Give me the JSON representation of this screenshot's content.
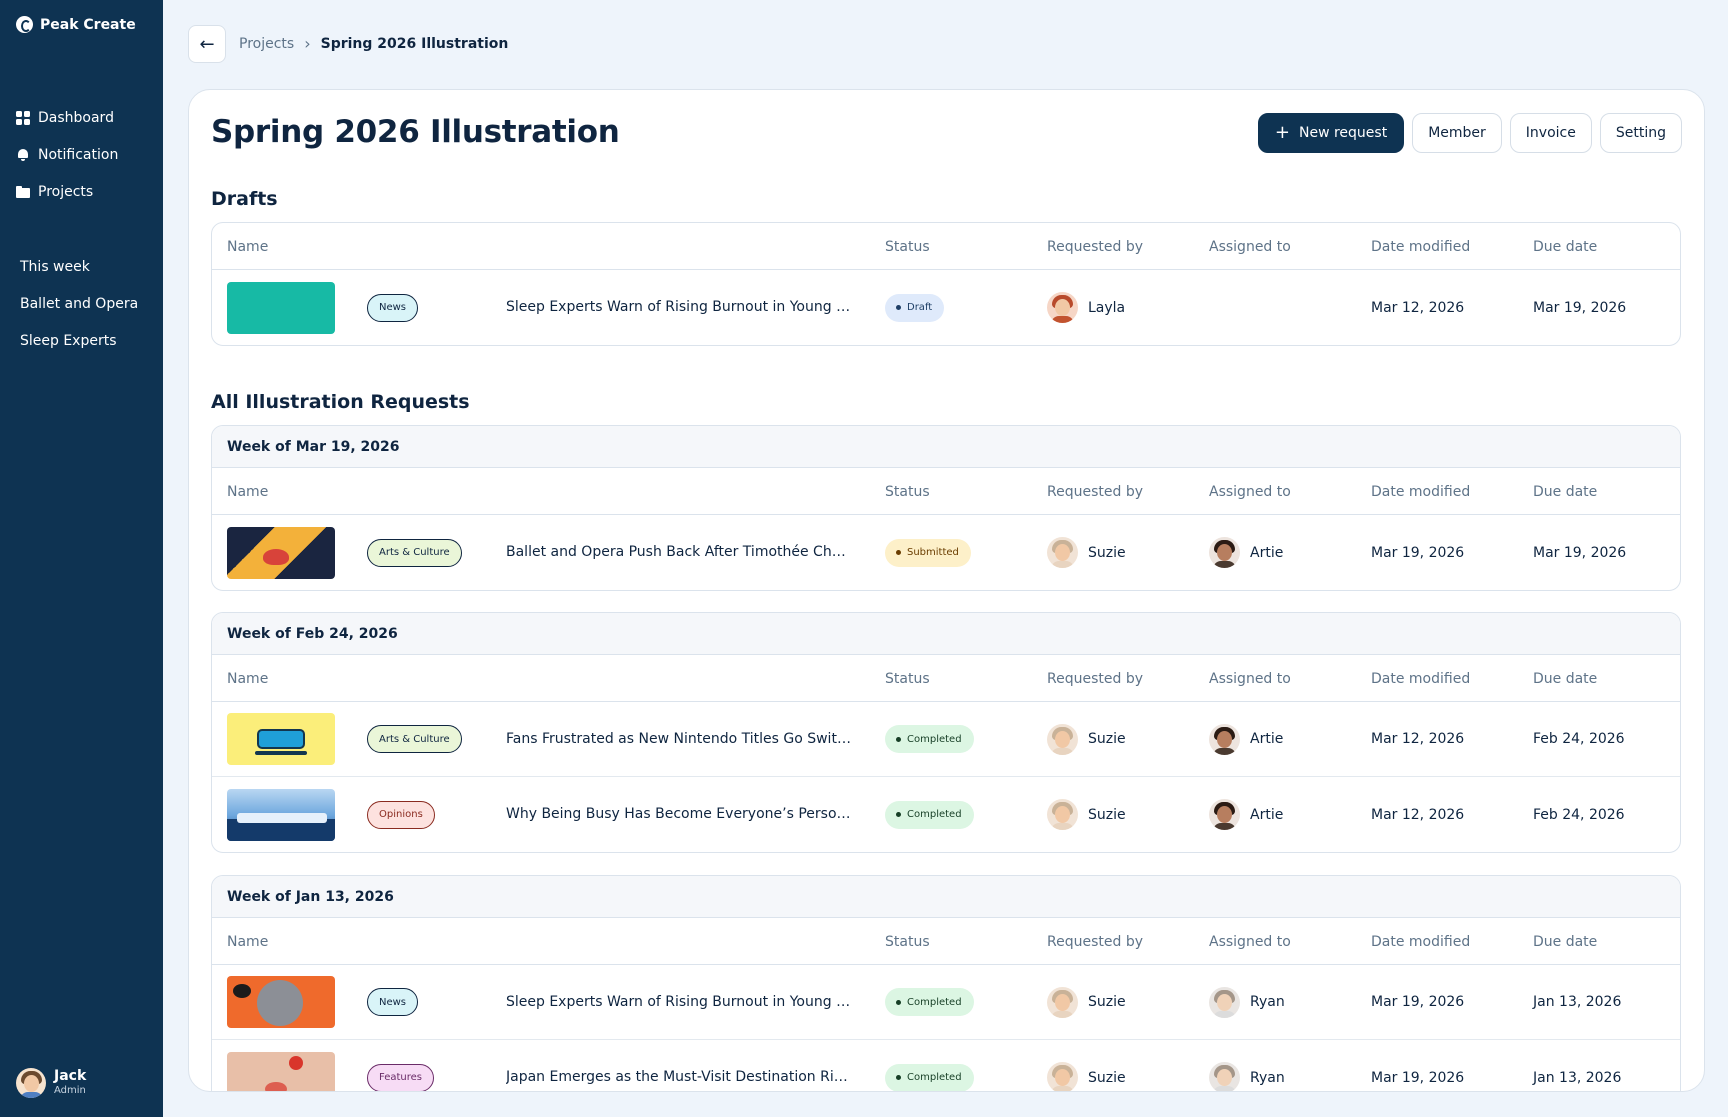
{
  "app": {
    "name": "Peak Create"
  },
  "sidebar": {
    "nav": [
      {
        "label": "Dashboard",
        "icon": "dashboard-icon"
      },
      {
        "label": "Notification",
        "icon": "bell-icon"
      },
      {
        "label": "Projects",
        "icon": "folder-icon"
      }
    ],
    "shortcuts": [
      "This week",
      "Ballet and Opera",
      "Sleep Experts"
    ],
    "user": {
      "name": "Jack",
      "role": "Admin"
    }
  },
  "breadcrumb": {
    "parent": "Projects",
    "current": "Spring 2026 Illustration"
  },
  "page": {
    "title": "Spring 2026 Illustration",
    "actions": {
      "new_request": "New request",
      "member": "Member",
      "invoice": "Invoice",
      "setting": "Setting"
    }
  },
  "columns": {
    "name": "Name",
    "status": "Status",
    "requested_by": "Requested by",
    "assigned_to": "Assigned to",
    "date_modified": "Date modified",
    "due_date": "Due date"
  },
  "drafts": {
    "title": "Drafts",
    "rows": [
      {
        "tag": "News",
        "title": "Sleep Experts Warn of Rising Burnout in Young Ad...",
        "status": "Draft",
        "requested_by": "Layla",
        "assigned_to": "",
        "date_modified": "Mar 12, 2026",
        "due_date": "Mar 19, 2026"
      }
    ]
  },
  "requests": {
    "title": "All Illustration Requests",
    "groups": [
      {
        "week": "Week of Mar 19, 2026",
        "rows": [
          {
            "tag": "Arts & Culture",
            "title": "Ballet and Opera Push Back After Timothée Chala...",
            "status": "Submitted",
            "requested_by": "Suzie",
            "assigned_to": "Artie",
            "date_modified": "Mar 19, 2026",
            "due_date": "Mar 19, 2026"
          }
        ]
      },
      {
        "week": "Week of Feb 24, 2026",
        "rows": [
          {
            "tag": "Arts & Culture",
            "title": "Fans Frustrated as New Nintendo Titles Go Switch...",
            "status": "Completed",
            "requested_by": "Suzie",
            "assigned_to": "Artie",
            "date_modified": "Mar 12, 2026",
            "due_date": "Feb 24, 2026"
          },
          {
            "tag": "Opinions",
            "title": "Why Being Busy Has Become Everyone’s Personality",
            "status": "Completed",
            "requested_by": "Suzie",
            "assigned_to": "Artie",
            "date_modified": "Mar 12, 2026",
            "due_date": "Feb 24, 2026"
          }
        ]
      },
      {
        "week": "Week of Jan 13, 2026",
        "rows": [
          {
            "tag": "News",
            "title": "Sleep Experts Warn of Rising Burnout in Young Ad...",
            "status": "Completed",
            "requested_by": "Suzie",
            "assigned_to": "Ryan",
            "date_modified": "Mar 19, 2026",
            "due_date": "Jan 13, 2026"
          },
          {
            "tag": "Features",
            "title": "Japan Emerges as the Must-Visit Destination Right...",
            "status": "Completed",
            "requested_by": "Suzie",
            "assigned_to": "Ryan",
            "date_modified": "Mar 19, 2026",
            "due_date": "Jan 13, 2026"
          }
        ]
      }
    ]
  },
  "colors": {
    "sidebar": "#0e3352",
    "primary_button": "#0e3352",
    "page_bg": "#eef4fb",
    "draft_thumb": "#17baa5"
  }
}
